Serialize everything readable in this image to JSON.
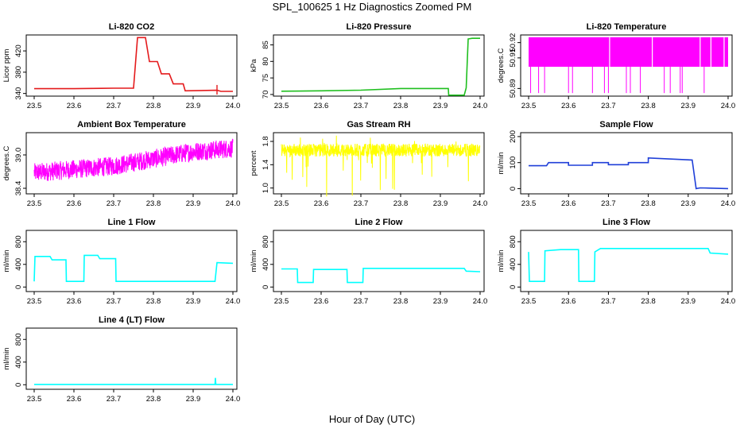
{
  "figure": {
    "title": "SPL_100625  1 Hz Diagnostics Zoomed PM",
    "xlabel": "Hour of Day (UTC)"
  },
  "chart_data": [
    {
      "type": "line",
      "title": "Li-820 CO2",
      "ylabel": "Licor ppm",
      "color": "#e41a1c",
      "x_ticks": [
        "23.5",
        "23.6",
        "23.7",
        "23.8",
        "23.9",
        "24.0"
      ],
      "xlim": [
        23.48,
        24.01
      ],
      "y_ticks": [
        "340",
        "380",
        "420"
      ],
      "ylim": [
        335,
        450
      ],
      "series": [
        {
          "x": [
            23.5,
            23.6,
            23.7,
            23.75,
            23.76,
            23.78,
            23.79,
            23.81,
            23.82,
            23.84,
            23.85,
            23.875,
            23.88,
            23.96,
            23.97,
            24.0
          ],
          "values": [
            349,
            349,
            350,
            350,
            445,
            445,
            400,
            400,
            377,
            377,
            358,
            358,
            345,
            346,
            344,
            344
          ]
        }
      ]
    },
    {
      "type": "line",
      "title": "Li-820 Pressure",
      "ylabel": "kPa",
      "color": "#1fbf1f",
      "x_ticks": [
        "23.5",
        "23.6",
        "23.7",
        "23.8",
        "23.9",
        "24.0"
      ],
      "xlim": [
        23.48,
        24.01
      ],
      "y_ticks": [
        "70",
        "75",
        "80",
        "85"
      ],
      "ylim": [
        69.5,
        88
      ],
      "series": [
        {
          "x": [
            23.5,
            23.6,
            23.7,
            23.8,
            23.92,
            23.921,
            23.96,
            23.965,
            23.97,
            23.98,
            24.0
          ],
          "values": [
            71,
            71.1,
            71.3,
            71.8,
            71.8,
            69.8,
            69.8,
            72,
            86.8,
            87,
            87
          ]
        }
      ]
    },
    {
      "type": "line",
      "title": "Li-820 Temperature",
      "ylabel": "degrees.C",
      "color": "#ff00ff",
      "x_ticks": [
        "23.5",
        "23.6",
        "23.7",
        "23.8",
        "23.9",
        "24.0"
      ],
      "xlim": [
        23.48,
        24.01
      ],
      "y_ticks": [
        "50.89",
        "50.91",
        "50.92"
      ],
      "ylim": [
        50.885,
        50.925
      ],
      "series": [
        {
          "x": [
            23.5,
            24.0
          ],
          "values": [
            50.9175,
            50.9175
          ]
        }
      ]
    },
    {
      "type": "line",
      "title": "Ambient Box Temperature",
      "ylabel": "degrees.C",
      "color": "#ff00ff",
      "x_ticks": [
        "23.5",
        "23.6",
        "23.7",
        "23.8",
        "23.9",
        "24.0"
      ],
      "xlim": [
        23.48,
        24.01
      ],
      "y_ticks": [
        "38.4",
        "39.0"
      ],
      "ylim": [
        38.3,
        39.4
      ],
      "series": [
        {
          "x": [
            23.5,
            23.6,
            23.7,
            23.8,
            23.9,
            24.0
          ],
          "values": [
            38.68,
            38.74,
            38.8,
            38.93,
            39.06,
            39.12
          ]
        }
      ]
    },
    {
      "type": "line",
      "title": "Gas Stream RH",
      "ylabel": "percent",
      "color": "#ffff00",
      "x_ticks": [
        "23.5",
        "23.6",
        "23.7",
        "23.8",
        "23.9",
        "24.0"
      ],
      "xlim": [
        23.48,
        24.01
      ],
      "y_ticks": [
        "1.0",
        "1.4",
        "1.8"
      ],
      "ylim": [
        0.9,
        1.95
      ],
      "series": [
        {
          "x": [
            23.5,
            24.0
          ],
          "values": [
            1.65,
            1.65
          ]
        }
      ]
    },
    {
      "type": "line",
      "title": "Sample Flow",
      "ylabel": "ml/min",
      "color": "#1f3fd8",
      "x_ticks": [
        "23.5",
        "23.6",
        "23.7",
        "23.8",
        "23.9",
        "24.0"
      ],
      "xlim": [
        23.48,
        24.01
      ],
      "y_ticks": [
        "0",
        "100",
        "200"
      ],
      "ylim": [
        -20,
        215
      ],
      "series": [
        {
          "x": [
            23.5,
            23.545,
            23.55,
            23.6,
            23.6,
            23.66,
            23.66,
            23.7,
            23.7,
            23.75,
            23.75,
            23.8,
            23.8,
            23.91,
            23.92,
            23.93,
            24.0
          ],
          "values": [
            88,
            88,
            100,
            100,
            90,
            90,
            100,
            100,
            92,
            92,
            100,
            100,
            118,
            110,
            0,
            3,
            0
          ]
        }
      ]
    },
    {
      "type": "line",
      "title": "Line 1 Flow",
      "ylabel": "ml/min",
      "color": "#00ffff",
      "x_ticks": [
        "23.5",
        "23.6",
        "23.7",
        "23.8",
        "23.9",
        "24.0"
      ],
      "xlim": [
        23.48,
        24.01
      ],
      "y_ticks": [
        "0",
        "400",
        "800"
      ],
      "ylim": [
        -80,
        1000
      ],
      "series": [
        {
          "x": [
            23.5,
            23.502,
            23.54,
            23.545,
            23.58,
            23.581,
            23.625,
            23.626,
            23.66,
            23.665,
            23.705,
            23.706,
            23.955,
            23.96,
            24.0
          ],
          "values": [
            100,
            540,
            540,
            480,
            480,
            100,
            100,
            560,
            560,
            500,
            500,
            100,
            100,
            430,
            420
          ]
        }
      ]
    },
    {
      "type": "line",
      "title": "Line 2 Flow",
      "ylabel": "ml/min",
      "color": "#00ffff",
      "x_ticks": [
        "23.5",
        "23.6",
        "23.7",
        "23.8",
        "23.9",
        "24.0"
      ],
      "xlim": [
        23.48,
        24.01
      ],
      "y_ticks": [
        "0",
        "400",
        "800"
      ],
      "ylim": [
        -80,
        1000
      ],
      "series": [
        {
          "x": [
            23.5,
            23.54,
            23.541,
            23.58,
            23.581,
            23.665,
            23.666,
            23.705,
            23.706,
            23.96,
            23.965,
            24.0
          ],
          "values": [
            320,
            320,
            80,
            80,
            310,
            310,
            80,
            80,
            330,
            330,
            280,
            270
          ]
        }
      ]
    },
    {
      "type": "line",
      "title": "Line 3 Flow",
      "ylabel": "ml/min",
      "color": "#00ffff",
      "x_ticks": [
        "23.5",
        "23.6",
        "23.7",
        "23.8",
        "23.9",
        "24.0"
      ],
      "xlim": [
        23.48,
        24.01
      ],
      "y_ticks": [
        "0",
        "400",
        "800"
      ],
      "ylim": [
        -80,
        1000
      ],
      "series": [
        {
          "x": [
            23.5,
            23.502,
            23.54,
            23.541,
            23.58,
            23.625,
            23.626,
            23.665,
            23.666,
            23.68,
            23.95,
            23.955,
            24.0
          ],
          "values": [
            620,
            100,
            100,
            640,
            660,
            660,
            100,
            100,
            620,
            680,
            680,
            600,
            580
          ]
        }
      ]
    },
    {
      "type": "line",
      "title": "Line 4 (LT) Flow",
      "ylabel": "ml/min",
      "color": "#00ffff",
      "x_ticks": [
        "23.5",
        "23.6",
        "23.7",
        "23.8",
        "23.9",
        "24.0"
      ],
      "xlim": [
        23.48,
        24.01
      ],
      "y_ticks": [
        "0",
        "400",
        "800"
      ],
      "ylim": [
        -80,
        1000
      ],
      "series": [
        {
          "x": [
            23.5,
            23.955,
            23.956,
            23.957,
            23.958,
            24.0
          ],
          "values": [
            5,
            5,
            120,
            5,
            5,
            5
          ]
        }
      ]
    }
  ]
}
